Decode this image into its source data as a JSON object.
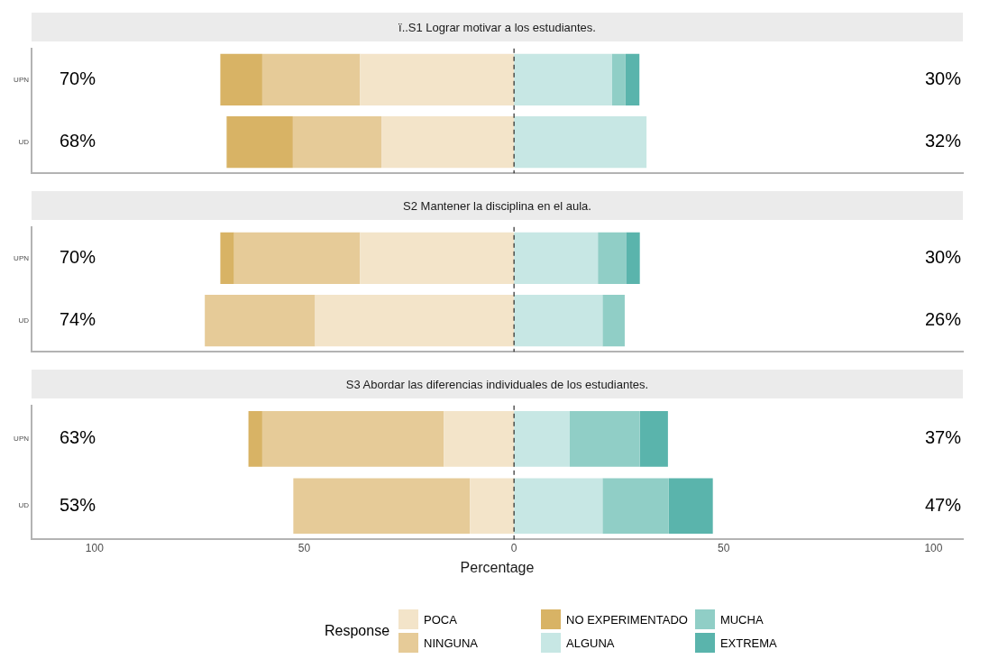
{
  "chart_data": [
    {
      "type": "bar",
      "orientation": "horizontal",
      "stacked": true,
      "title": "ï..S1 Lograr motivar a los estudiantes.",
      "categories": [
        "UPN",
        "UD"
      ],
      "series": [
        {
          "color": "#f3e4c9",
          "values": [
            -36.7,
            -31.6
          ]
        },
        {
          "color": "#e6cb98",
          "values": [
            -23.3,
            -21.1
          ]
        },
        {
          "color": "#d8b365",
          "values": [
            -10,
            -15.8
          ]
        },
        {
          "color": "#c7e7e4",
          "values": [
            23.3,
            31.6
          ]
        },
        {
          "color": "#90cec6",
          "values": [
            3.3,
            null
          ]
        },
        {
          "color": "#5ab4ac",
          "values": [
            3.3,
            null
          ]
        }
      ],
      "xlim": [
        -115,
        107
      ],
      "tick_labels": "y",
      "grid": false,
      "legend": false,
      "ref_lines": [
        {
          "axis": "x",
          "value": 0,
          "color": "#000000",
          "line_style": "dashed"
        }
      ],
      "annotations": [
        "70%",
        "68%",
        "30%",
        "32%"
      ]
    },
    {
      "type": "bar",
      "orientation": "horizontal",
      "stacked": true,
      "title": "S2 Mantener la disciplina en el aula.",
      "categories": [
        "UPN",
        "UD"
      ],
      "series": [
        {
          "color": "#f3e4c9",
          "values": [
            -36.7,
            -47.4
          ]
        },
        {
          "color": "#e6cb98",
          "values": [
            -30,
            -26.3
          ]
        },
        {
          "color": "#d8b365",
          "values": [
            -3.3,
            null
          ]
        },
        {
          "color": "#c7e7e4",
          "values": [
            20,
            21.1
          ]
        },
        {
          "color": "#90cec6",
          "values": [
            6.7,
            5.3
          ]
        },
        {
          "color": "#5ab4ac",
          "values": [
            3.3,
            null
          ]
        }
      ],
      "xlim": [
        -115,
        107
      ],
      "tick_labels": "y",
      "grid": false,
      "legend": false,
      "ref_lines": [
        {
          "axis": "x",
          "value": 0,
          "color": "#000000",
          "line_style": "dashed"
        }
      ],
      "annotations": [
        "70%",
        "74%",
        "30%",
        "26%"
      ]
    },
    {
      "type": "bar",
      "orientation": "horizontal",
      "stacked": true,
      "title": "S3 Abordar las diferencias individuales de los estudiantes.",
      "categories": [
        "UPN",
        "UD"
      ],
      "series": [
        {
          "name": "POCA",
          "color": "#f3e4c9",
          "values": [
            -16.7,
            -10.5
          ]
        },
        {
          "name": "NINGUNA",
          "color": "#e6cb98",
          "values": [
            -43.3,
            -42.1
          ]
        },
        {
          "name": "NO EXPERIMENTADO",
          "color": "#d8b365",
          "values": [
            -3.3,
            null
          ]
        },
        {
          "name": "ALGUNA",
          "color": "#c7e7e4",
          "values": [
            13.3,
            21.1
          ]
        },
        {
          "name": "MUCHA",
          "color": "#90cec6",
          "values": [
            16.7,
            15.8
          ]
        },
        {
          "name": "EXTREMA",
          "color": "#5ab4ac",
          "values": [
            6.7,
            10.5
          ]
        }
      ],
      "xlim": [
        -115,
        107
      ],
      "xticks": [
        {
          "value": -100,
          "label": "100"
        },
        {
          "value": -50,
          "label": "50"
        },
        0,
        50,
        100
      ],
      "grid": false,
      "legend": "bottom",
      "legend_title": "Response",
      "xlabel": "Percentage",
      "ref_lines": [
        {
          "axis": "x",
          "value": 0,
          "color": "#000000",
          "line_style": "dashed"
        }
      ],
      "annotations": [
        "63%",
        "53%",
        "37%",
        "47%"
      ]
    }
  ]
}
